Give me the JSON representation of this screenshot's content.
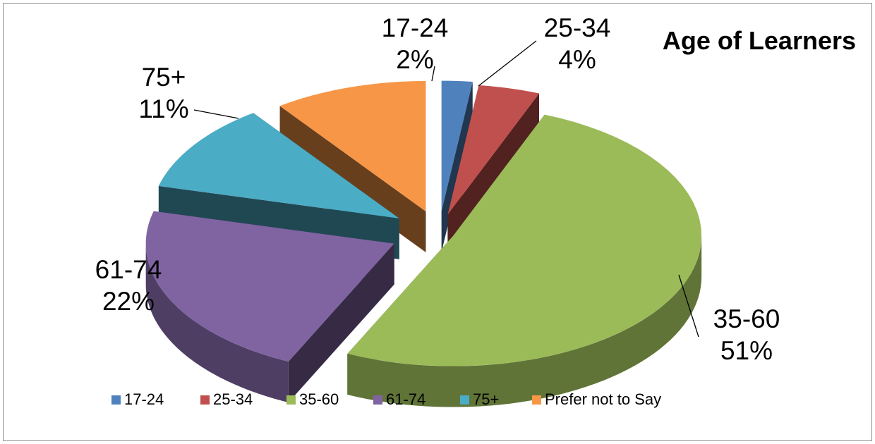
{
  "chart_data": {
    "type": "pie",
    "title": "Age of Learners",
    "three_d": true,
    "exploded": true,
    "legend_position": "bottom",
    "slices": [
      {
        "label": "17-24",
        "value": 2,
        "value_label": "2%",
        "color": "#4f81bd"
      },
      {
        "label": "25-34",
        "value": 4,
        "value_label": "4%",
        "color": "#c0504d"
      },
      {
        "label": "35-60",
        "value": 51,
        "value_label": "51%",
        "color": "#9bbb59"
      },
      {
        "label": "61-74",
        "value": 22,
        "value_label": "22%",
        "color": "#8064a2"
      },
      {
        "label": "75+",
        "value": 11,
        "value_label": "11%",
        "color": "#4bacc6"
      },
      {
        "label": "Prefer not to Say",
        "value": 10,
        "value_label": "",
        "color": "#f79646"
      }
    ]
  }
}
